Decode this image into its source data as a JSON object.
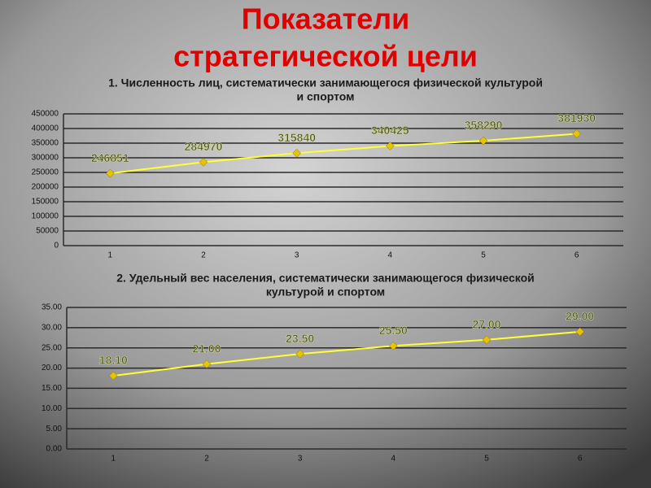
{
  "title": [
    "Показатели",
    "стратегической цели"
  ],
  "chart_data": [
    {
      "type": "line",
      "title": [
        "1. Численность лиц, систематически занимающегося физической культурой",
        "и спортом"
      ],
      "categories": [
        "1",
        "2",
        "3",
        "4",
        "5",
        "6"
      ],
      "values": [
        246851,
        284970,
        315840,
        340425,
        358290,
        381930
      ],
      "ylim": [
        0,
        450000
      ],
      "yticks": [
        0,
        50000,
        100000,
        150000,
        200000,
        250000,
        300000,
        350000,
        400000,
        450000
      ],
      "grid": true,
      "color": "#ffff33",
      "marker_color": "#e8c400",
      "label_color": "#44521a"
    },
    {
      "type": "line",
      "title": [
        "2. Удельный вес населения, систематически занимающегося физической",
        "культурой и спортом"
      ],
      "categories": [
        "1",
        "2",
        "3",
        "4",
        "5",
        "6"
      ],
      "values": [
        18.1,
        21,
        23.5,
        25.5,
        27,
        29
      ],
      "value_labels": [
        "18.10",
        "21.00",
        "23.50",
        "25.50",
        "27.00",
        "29.00"
      ],
      "ylim": [
        0,
        35
      ],
      "yticks": [
        {
          "value": 0,
          "label": "0.00"
        },
        {
          "value": 5,
          "label": "5.00"
        },
        {
          "value": 10,
          "label": "10.00"
        },
        {
          "value": 15,
          "label": "15.00"
        },
        {
          "value": 20,
          "label": "20.00"
        },
        {
          "value": 25,
          "label": "25.00"
        },
        {
          "value": 30,
          "label": "30.00"
        },
        {
          "value": 35,
          "label": "35.00"
        }
      ],
      "grid": true,
      "color": "#ffff33",
      "marker_color": "#e8c400",
      "label_color": "#44521a"
    }
  ]
}
